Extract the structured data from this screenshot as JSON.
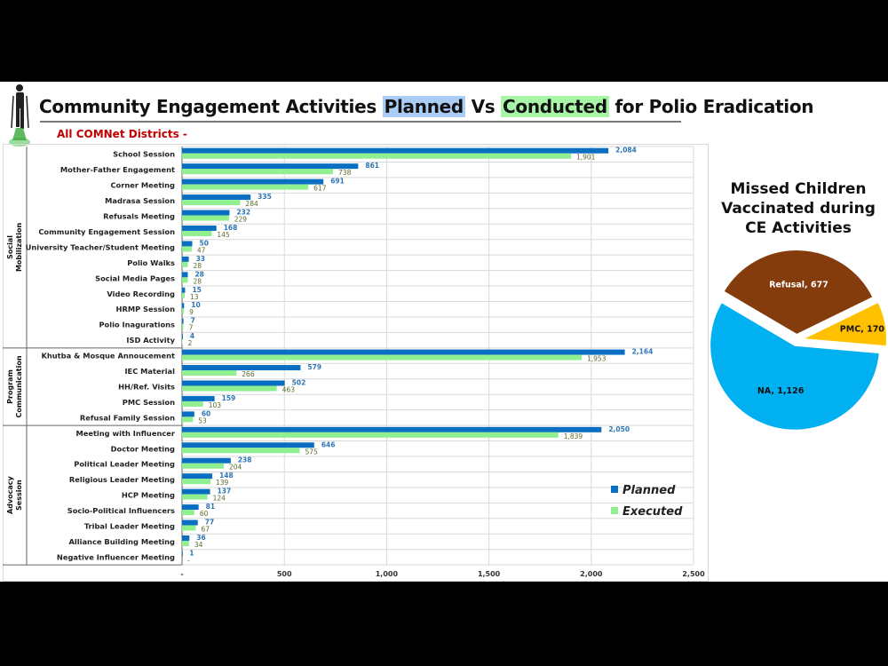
{
  "header": {
    "title_parts": [
      "Community Engagement Activities ",
      "Planned",
      " Vs ",
      "Conducted",
      " for Polio Eradication"
    ],
    "subtitle": "All COMNet Districts -"
  },
  "colors": {
    "planned": "#0a6fc2",
    "executed": "#90f090",
    "planned_label": "#2e75b6",
    "executed_label": "#5a6b2a",
    "highlight_planned": "#a9cdf5",
    "highlight_conducted": "#a8f5a8",
    "subtitle": "#c00000"
  },
  "chart_data": [
    {
      "type": "bar",
      "orientation": "horizontal",
      "groups": [
        {
          "name": "Social Mobilization",
          "categories": [
            "School Session",
            "Mother-Father Engagement",
            "Corner Meeting",
            "Madrasa Session",
            "Refusals Meeting",
            "Community Engagement Session",
            "University Teacher/Student Meeting",
            "Polio Walks",
            "Social Media Pages",
            "Video Recording",
            "HRMP Session",
            "Polio Inagurations",
            "ISD Activity"
          ]
        },
        {
          "name": "Program Communication",
          "categories": [
            "Khutba & Mosque Annoucement",
            "IEC Material",
            "HH/Ref. Visits",
            "PMC Session",
            "Refusal Family Session"
          ]
        },
        {
          "name": "Advocacy Session",
          "categories": [
            "Meeting with Influencer",
            "Doctor Meeting",
            "Political Leader Meeting",
            "Religious Leader Meeting",
            "HCP Meeting",
            "Socio-Political Influencers",
            "Tribal Leader Meeting",
            "Alliance Building Meeting",
            "Negative Influencer Meeting"
          ]
        }
      ],
      "series": [
        {
          "name": "Planned",
          "values": [
            2084,
            861,
            691,
            335,
            232,
            168,
            50,
            33,
            28,
            15,
            10,
            7,
            4,
            2164,
            579,
            502,
            159,
            60,
            2050,
            646,
            238,
            148,
            137,
            81,
            77,
            36,
            1
          ]
        },
        {
          "name": "Executed",
          "values": [
            1901,
            738,
            617,
            284,
            229,
            145,
            47,
            28,
            28,
            13,
            9,
            7,
            2,
            1953,
            266,
            463,
            103,
            53,
            1839,
            575,
            204,
            139,
            124,
            60,
            67,
            34,
            0
          ]
        }
      ],
      "data_labels_planned": [
        "2,084",
        "861",
        "691",
        "335",
        "232",
        "168",
        "50",
        "33",
        "28",
        "15",
        "10",
        "7",
        "4",
        "2,164",
        "579",
        "502",
        "159",
        "60",
        "2,050",
        "646",
        "238",
        "148",
        "137",
        "81",
        "77",
        "36",
        "1"
      ],
      "data_labels_executed": [
        "1,901",
        "738",
        "617",
        "284",
        "229",
        "145",
        "47",
        "28",
        "28",
        "13",
        "9",
        "7",
        "2",
        "1,953",
        "266",
        "463",
        "103",
        "53",
        "1,839",
        "575",
        "204",
        "139",
        "124",
        "60",
        "67",
        "34",
        "-"
      ],
      "xlim": [
        0,
        2500
      ],
      "xticks": [
        "-",
        "500",
        "1,000",
        "1,500",
        "2,000",
        "2,500"
      ],
      "grid": true,
      "legend": {
        "position": "bottom-right",
        "entries": [
          "Planned",
          "Executed"
        ]
      }
    },
    {
      "type": "pie",
      "title": "Missed Children Vaccinated during CE Activities",
      "slices": [
        {
          "label": "PMC",
          "value": 170,
          "text": "PMC,  170",
          "color": "#ffc000"
        },
        {
          "label": "Refusal",
          "value": 677,
          "text": "Refusal,  677",
          "color": "#843c0c"
        },
        {
          "label": "NA",
          "value": 1126,
          "text": "NA,  1,126",
          "color": "#00b0f0"
        }
      ]
    }
  ]
}
